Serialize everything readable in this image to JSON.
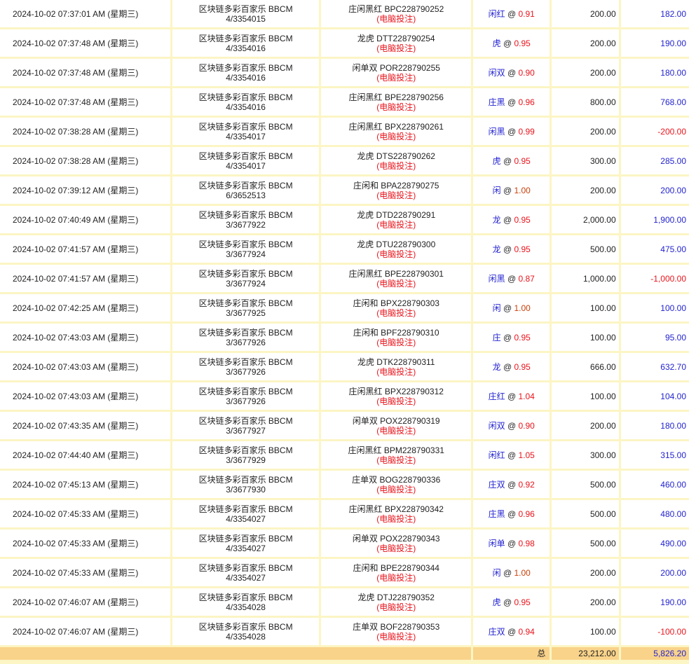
{
  "colors": {
    "positive": "#2323d0",
    "negative": "#e8141c",
    "border": "#fcf5c4",
    "total_bg": "#f9d38a"
  },
  "source_label": "(电脑投注)",
  "rows": [
    {
      "time": "2024-10-02 07:37:01 AM (星期三)",
      "game": "区块链多彩百家乐 BBCM",
      "round": "4/3354015",
      "bet_type": "庄闲黑红 BPC228790252",
      "pick": "闲红",
      "odds": "0.91",
      "stake": "200.00",
      "result": "182.00"
    },
    {
      "time": "2024-10-02 07:37:48 AM (星期三)",
      "game": "区块链多彩百家乐 BBCM",
      "round": "4/3354016",
      "bet_type": "龙虎 DTT228790254",
      "pick": "虎",
      "odds": "0.95",
      "stake": "200.00",
      "result": "190.00"
    },
    {
      "time": "2024-10-02 07:37:48 AM (星期三)",
      "game": "区块链多彩百家乐 BBCM",
      "round": "4/3354016",
      "bet_type": "闲单双 POR228790255",
      "pick": "闲双",
      "odds": "0.90",
      "stake": "200.00",
      "result": "180.00"
    },
    {
      "time": "2024-10-02 07:37:48 AM (星期三)",
      "game": "区块链多彩百家乐 BBCM",
      "round": "4/3354016",
      "bet_type": "庄闲黑红 BPE228790256",
      "pick": "庄黑",
      "odds": "0.96",
      "stake": "800.00",
      "result": "768.00"
    },
    {
      "time": "2024-10-02 07:38:28 AM (星期三)",
      "game": "区块链多彩百家乐 BBCM",
      "round": "4/3354017",
      "bet_type": "庄闲黑红 BPX228790261",
      "pick": "闲黑",
      "odds": "0.99",
      "stake": "200.00",
      "result": "-200.00"
    },
    {
      "time": "2024-10-02 07:38:28 AM (星期三)",
      "game": "区块链多彩百家乐 BBCM",
      "round": "4/3354017",
      "bet_type": "龙虎 DTS228790262",
      "pick": "虎",
      "odds": "0.95",
      "stake": "300.00",
      "result": "285.00"
    },
    {
      "time": "2024-10-02 07:39:12 AM (星期三)",
      "game": "区块链多彩百家乐 BBCM",
      "round": "6/3652513",
      "bet_type": "庄闲和 BPA228790275",
      "pick": "闲",
      "odds": "1.00",
      "stake": "200.00",
      "result": "200.00"
    },
    {
      "time": "2024-10-02 07:40:49 AM (星期三)",
      "game": "区块链多彩百家乐 BBCM",
      "round": "3/3677922",
      "bet_type": "龙虎 DTD228790291",
      "pick": "龙",
      "odds": "0.95",
      "stake": "2,000.00",
      "result": "1,900.00"
    },
    {
      "time": "2024-10-02 07:41:57 AM (星期三)",
      "game": "区块链多彩百家乐 BBCM",
      "round": "3/3677924",
      "bet_type": "龙虎 DTU228790300",
      "pick": "龙",
      "odds": "0.95",
      "stake": "500.00",
      "result": "475.00"
    },
    {
      "time": "2024-10-02 07:41:57 AM (星期三)",
      "game": "区块链多彩百家乐 BBCM",
      "round": "3/3677924",
      "bet_type": "庄闲黑红 BPE228790301",
      "pick": "闲黑",
      "odds": "0.87",
      "stake": "1,000.00",
      "result": "-1,000.00"
    },
    {
      "time": "2024-10-02 07:42:25 AM (星期三)",
      "game": "区块链多彩百家乐 BBCM",
      "round": "3/3677925",
      "bet_type": "庄闲和 BPX228790303",
      "pick": "闲",
      "odds": "1.00",
      "stake": "100.00",
      "result": "100.00"
    },
    {
      "time": "2024-10-02 07:43:03 AM (星期三)",
      "game": "区块链多彩百家乐 BBCM",
      "round": "3/3677926",
      "bet_type": "庄闲和 BPF228790310",
      "pick": "庄",
      "odds": "0.95",
      "stake": "100.00",
      "result": "95.00"
    },
    {
      "time": "2024-10-02 07:43:03 AM (星期三)",
      "game": "区块链多彩百家乐 BBCM",
      "round": "3/3677926",
      "bet_type": "龙虎 DTK228790311",
      "pick": "龙",
      "odds": "0.95",
      "stake": "666.00",
      "result": "632.70"
    },
    {
      "time": "2024-10-02 07:43:03 AM (星期三)",
      "game": "区块链多彩百家乐 BBCM",
      "round": "3/3677926",
      "bet_type": "庄闲黑红 BPX228790312",
      "pick": "庄红",
      "odds": "1.04",
      "stake": "100.00",
      "result": "104.00"
    },
    {
      "time": "2024-10-02 07:43:35 AM (星期三)",
      "game": "区块链多彩百家乐 BBCM",
      "round": "3/3677927",
      "bet_type": "闲单双 POX228790319",
      "pick": "闲双",
      "odds": "0.90",
      "stake": "200.00",
      "result": "180.00"
    },
    {
      "time": "2024-10-02 07:44:40 AM (星期三)",
      "game": "区块链多彩百家乐 BBCM",
      "round": "3/3677929",
      "bet_type": "庄闲黑红 BPM228790331",
      "pick": "闲红",
      "odds": "1.05",
      "stake": "300.00",
      "result": "315.00"
    },
    {
      "time": "2024-10-02 07:45:13 AM (星期三)",
      "game": "区块链多彩百家乐 BBCM",
      "round": "3/3677930",
      "bet_type": "庄单双 BOG228790336",
      "pick": "庄双",
      "odds": "0.92",
      "stake": "500.00",
      "result": "460.00"
    },
    {
      "time": "2024-10-02 07:45:33 AM (星期三)",
      "game": "区块链多彩百家乐 BBCM",
      "round": "4/3354027",
      "bet_type": "庄闲黑红 BPX228790342",
      "pick": "庄黑",
      "odds": "0.96",
      "stake": "500.00",
      "result": "480.00"
    },
    {
      "time": "2024-10-02 07:45:33 AM (星期三)",
      "game": "区块链多彩百家乐 BBCM",
      "round": "4/3354027",
      "bet_type": "闲单双 POX228790343",
      "pick": "闲单",
      "odds": "0.98",
      "stake": "500.00",
      "result": "490.00"
    },
    {
      "time": "2024-10-02 07:45:33 AM (星期三)",
      "game": "区块链多彩百家乐 BBCM",
      "round": "4/3354027",
      "bet_type": "庄闲和 BPE228790344",
      "pick": "闲",
      "odds": "1.00",
      "stake": "200.00",
      "result": "200.00"
    },
    {
      "time": "2024-10-02 07:46:07 AM (星期三)",
      "game": "区块链多彩百家乐 BBCM",
      "round": "4/3354028",
      "bet_type": "龙虎 DTJ228790352",
      "pick": "虎",
      "odds": "0.95",
      "stake": "200.00",
      "result": "190.00"
    },
    {
      "time": "2024-10-02 07:46:07 AM (星期三)",
      "game": "区块链多彩百家乐 BBCM",
      "round": "4/3354028",
      "bet_type": "庄单双 BOF228790353",
      "pick": "庄双",
      "odds": "0.94",
      "stake": "100.00",
      "result": "-100.00"
    }
  ],
  "total": {
    "label": "总",
    "stake": "23,212.00",
    "result": "5,826.20"
  }
}
